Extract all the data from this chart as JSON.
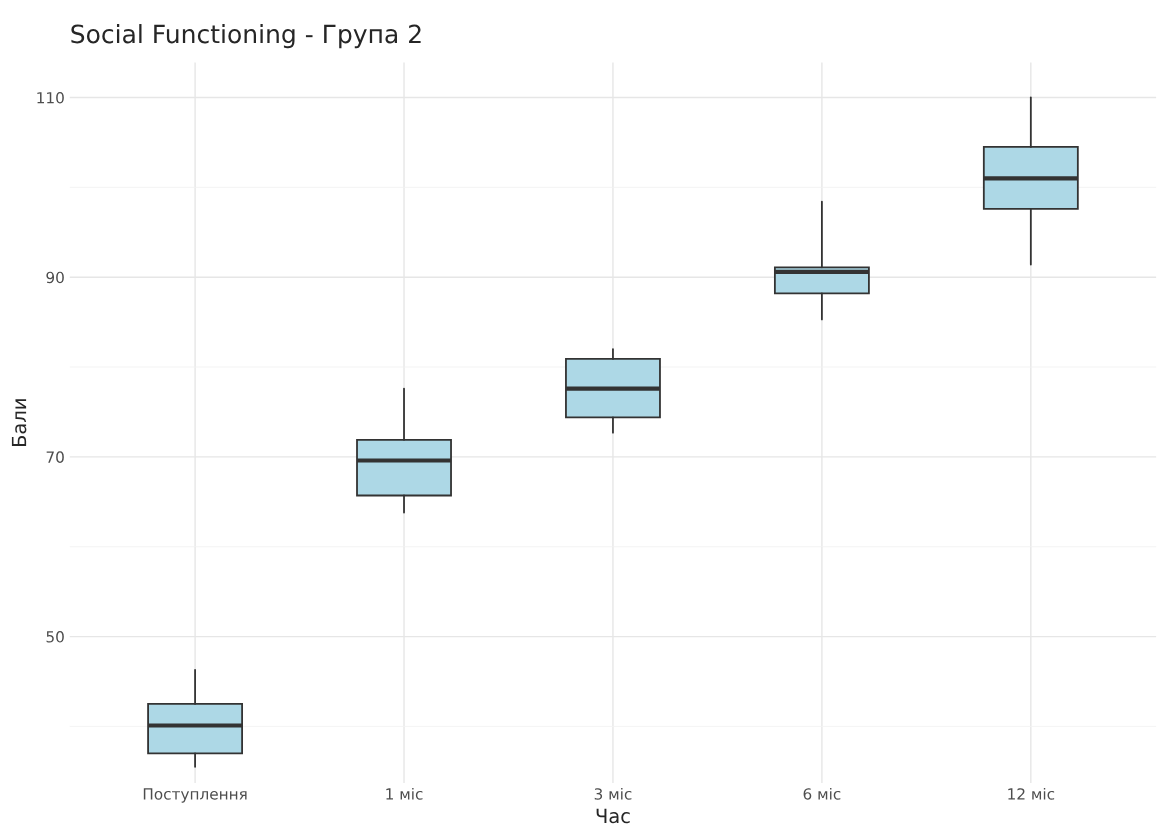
{
  "chart_data": {
    "type": "box",
    "title": "Social Functioning - Група 2",
    "xlabel": "Час",
    "ylabel": "Бали",
    "categories": [
      "Поступлення",
      "1 міс",
      "3 міс",
      "6 міс",
      "12 міс"
    ],
    "series": [
      {
        "color": "#add8e6",
        "boxes": [
          {
            "low": 35.5,
            "q1": 37.0,
            "median": 40.1,
            "q3": 42.5,
            "high": 46.3
          },
          {
            "low": 63.8,
            "q1": 65.7,
            "median": 69.6,
            "q3": 71.9,
            "high": 77.6
          },
          {
            "low": 72.7,
            "q1": 74.4,
            "median": 77.6,
            "q3": 80.9,
            "high": 82.0
          },
          {
            "low": 85.3,
            "q1": 88.2,
            "median": 90.6,
            "q3": 91.1,
            "high": 98.4
          },
          {
            "low": 91.4,
            "q1": 97.6,
            "median": 101.0,
            "q3": 104.5,
            "high": 110.0
          }
        ]
      }
    ],
    "ylim": [
      33.7,
      113.9
    ],
    "yticks": [
      {
        "value": 40,
        "label": null
      },
      50,
      {
        "value": 60,
        "label": null
      },
      70,
      {
        "value": 80,
        "label": null
      },
      90,
      {
        "value": 100,
        "label": null
      },
      110
    ],
    "grid": true
  }
}
